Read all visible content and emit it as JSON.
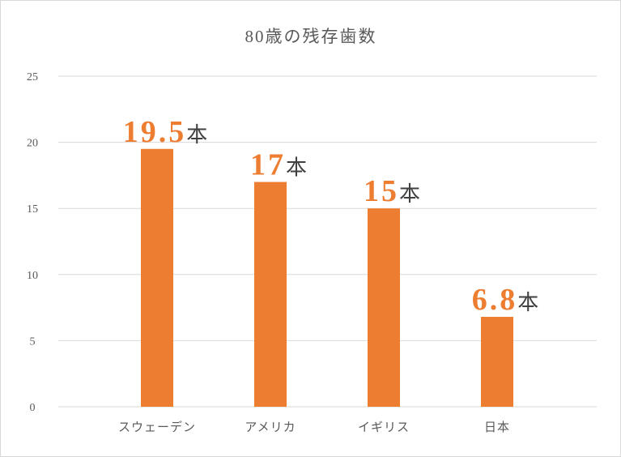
{
  "chart_data": {
    "type": "bar",
    "title": "80歳の残存歯数",
    "categories": [
      "スウェーデン",
      "アメリカ",
      "イギリス",
      "日本"
    ],
    "values": [
      19.5,
      17,
      15,
      6.8
    ],
    "unit": "本",
    "color": "#ED7D31",
    "ylim": [
      0,
      25
    ],
    "yticks": [
      0,
      5,
      10,
      15,
      20,
      25
    ],
    "grid": true
  }
}
